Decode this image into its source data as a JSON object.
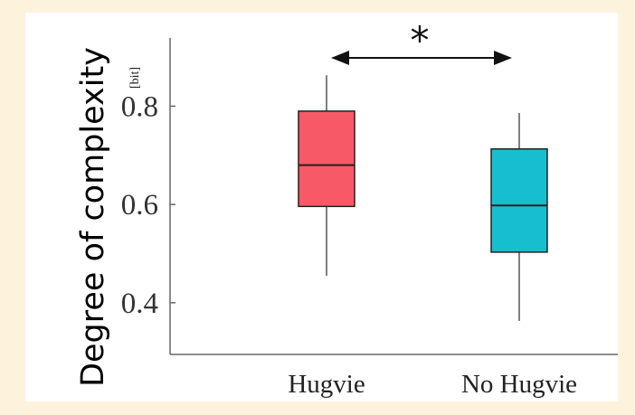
{
  "chart_data": {
    "type": "box",
    "ylabel": "Degree of complexity",
    "yunit": "[bit]",
    "ylim": [
      0.35,
      0.88
    ],
    "yticks": [
      0.4,
      0.6,
      0.8
    ],
    "ytick_labels": [
      "0.4",
      "0.6",
      "0.8"
    ],
    "categories": [
      "Hugvie",
      "No Hugvie"
    ],
    "boxes": [
      {
        "category": "Hugvie",
        "min": 0.455,
        "q1": 0.596,
        "median": 0.68,
        "q3": 0.79,
        "max": 0.863,
        "color": "#f75a66"
      },
      {
        "category": "No Hugvie",
        "min": 0.363,
        "q1": 0.503,
        "median": 0.598,
        "q3": 0.713,
        "max": 0.786,
        "color": "#17becf"
      }
    ],
    "significance": {
      "between": [
        "Hugvie",
        "No Hugvie"
      ],
      "label": "*"
    }
  }
}
